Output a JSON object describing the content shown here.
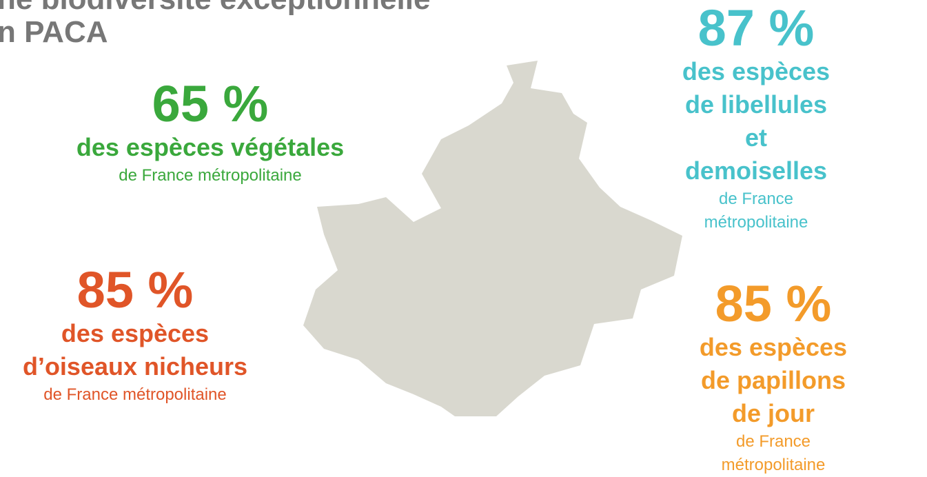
{
  "header": {
    "lines": [
      "ne biodiversité exceptionnelle",
      "n PACA"
    ]
  },
  "stats": [
    {
      "value": "65 %",
      "lines": [
        "des espèces végétales"
      ],
      "note": "de France métropolitaine"
    },
    {
      "value": "87 %",
      "lines": [
        "des espèces de libellules",
        "et demoiselles"
      ],
      "note": "de France métropolitaine"
    },
    {
      "value": "85 %",
      "lines": [
        "des espèces",
        "d’oiseaux nicheurs"
      ],
      "note": "de France métropolitaine"
    },
    {
      "value": "85 %",
      "lines": [
        "des espèces",
        "de papillons de jour"
      ],
      "note": "de France métropolitaine"
    }
  ]
}
